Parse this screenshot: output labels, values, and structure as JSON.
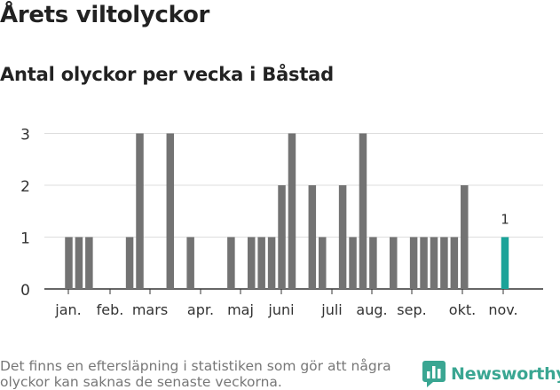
{
  "chart_data": {
    "type": "bar",
    "title": "Årets viltolyckor",
    "subtitle": "Antal olyckor per vecka i Båstad",
    "x_tick_labels": [
      "jan.",
      "feb.",
      "mars",
      "apr.",
      "maj",
      "juni",
      "juli",
      "aug.",
      "sep.",
      "okt.",
      "nov."
    ],
    "y_ticks": [
      0,
      1,
      2,
      3
    ],
    "ylim": [
      0,
      3
    ],
    "weeks": [
      1,
      2,
      3,
      4,
      5,
      6,
      7,
      8,
      9,
      10,
      11,
      12,
      13,
      14,
      15,
      16,
      17,
      18,
      19,
      20,
      21,
      22,
      23,
      24,
      25,
      26,
      27,
      28,
      29,
      30,
      31,
      32,
      33,
      34,
      35,
      36,
      37,
      38,
      39,
      40,
      41,
      42,
      43,
      44,
      45
    ],
    "values": [
      1,
      1,
      1,
      0,
      0,
      0,
      1,
      3,
      0,
      0,
      3,
      0,
      1,
      0,
      0,
      0,
      1,
      0,
      1,
      1,
      1,
      2,
      3,
      0,
      2,
      1,
      0,
      2,
      1,
      3,
      1,
      0,
      1,
      0,
      1,
      1,
      1,
      1,
      1,
      2,
      0,
      0,
      0,
      1,
      0
    ],
    "highlight_week": 44,
    "highlight_label": "1",
    "bar_color": "#737373",
    "highlight_color": "#1aa399",
    "grid": true
  },
  "footnote": "Det finns en eftersläpning i statistiken som gör att några olyckor kan saknas de senaste veckorna.",
  "brand": {
    "name": "Newsworthy",
    "icon": "bar-chart-speech-icon",
    "color": "#3aa692"
  }
}
